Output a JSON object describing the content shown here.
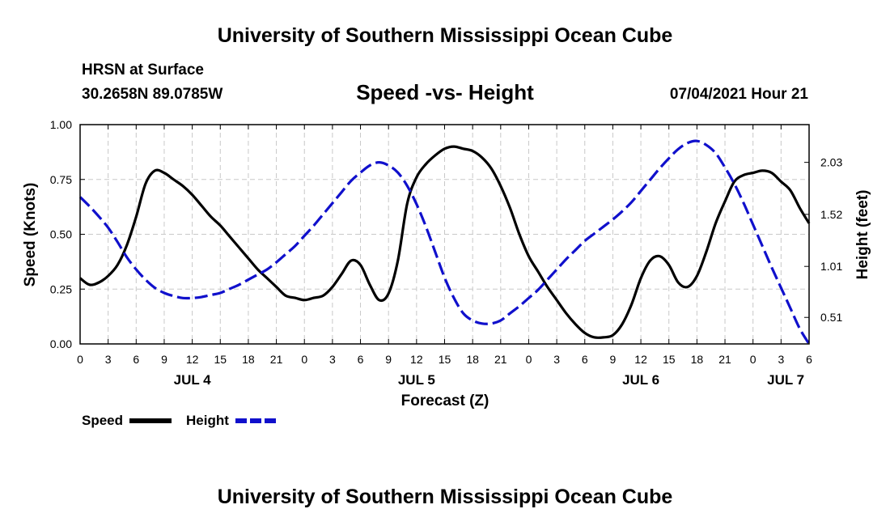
{
  "header": {
    "title": "University of Southern Mississippi Ocean Cube",
    "station": "HRSN at Surface",
    "coordinates": "30.2658N  89.0785W",
    "subtitle": "Speed -vs- Height",
    "datetime": "07/04/2021 Hour 21"
  },
  "footer": {
    "title": "University of Southern Mississippi Ocean Cube"
  },
  "chart_data": {
    "type": "line",
    "xlabel": "Forecast (Z)",
    "ylabel_left": "Speed (Knots)",
    "ylabel_right": "Height (feet)",
    "x_unit": "forecast hours from JUL 4 00Z",
    "xlim": [
      0,
      78
    ],
    "ylim_left": [
      0,
      1
    ],
    "ylim_right": [
      0.25,
      2.4
    ],
    "grid": true,
    "x_ticks": [
      0,
      3,
      6,
      9,
      12,
      15,
      18,
      21,
      24,
      27,
      30,
      33,
      36,
      39,
      42,
      45,
      48,
      51,
      54,
      57,
      60,
      63,
      66,
      69,
      72,
      75,
      78
    ],
    "x_tick_labels": [
      "0",
      "3",
      "6",
      "9",
      "12",
      "15",
      "18",
      "21",
      "0",
      "3",
      "6",
      "9",
      "12",
      "15",
      "18",
      "21",
      "0",
      "3",
      "6",
      "9",
      "12",
      "15",
      "18",
      "21",
      "0",
      "3",
      "6"
    ],
    "date_labels": [
      {
        "x": 12,
        "label": "JUL 4"
      },
      {
        "x": 36,
        "label": "JUL 5"
      },
      {
        "x": 60,
        "label": "JUL 6"
      },
      {
        "x": 75.5,
        "label": "JUL 7"
      }
    ],
    "y_left_ticks": [
      0,
      0.25,
      0.5,
      0.75,
      1.0
    ],
    "y_left_tick_labels": [
      "0.00",
      "0.25",
      "0.50",
      "0.75",
      "1.00"
    ],
    "y_right_ticks": [
      0.51,
      1.01,
      1.52,
      2.03
    ],
    "y_right_tick_labels": [
      "0.51",
      "1.01",
      "1.52",
      "2.03"
    ],
    "legend": {
      "placement": "bottom-left",
      "items": [
        {
          "label": "Speed",
          "color": "#000000",
          "style": "solid"
        },
        {
          "label": "Height",
          "color": "#1010cc",
          "style": "dashed"
        }
      ]
    },
    "series": [
      {
        "name": "Speed",
        "axis": "left",
        "color": "#000000",
        "style": "solid",
        "x": [
          0,
          1,
          2,
          3,
          4,
          5,
          6,
          7,
          8,
          9,
          10,
          11,
          12,
          13,
          14,
          15,
          16,
          17,
          18,
          19,
          20,
          21,
          22,
          23,
          24,
          25,
          26,
          27,
          28,
          29,
          30,
          31,
          32,
          33,
          34,
          35,
          36,
          37,
          38,
          39,
          40,
          41,
          42,
          43,
          44,
          45,
          46,
          47,
          48,
          49,
          50,
          51,
          52,
          53,
          54,
          55,
          56,
          57,
          58,
          59,
          60,
          61,
          62,
          63,
          64,
          65,
          66,
          67,
          68,
          69,
          70,
          71,
          72,
          73,
          74,
          75,
          76,
          77,
          78
        ],
        "values": [
          0.3,
          0.27,
          0.28,
          0.31,
          0.36,
          0.45,
          0.58,
          0.73,
          0.79,
          0.78,
          0.75,
          0.72,
          0.68,
          0.63,
          0.58,
          0.54,
          0.49,
          0.44,
          0.39,
          0.34,
          0.3,
          0.26,
          0.22,
          0.21,
          0.2,
          0.21,
          0.22,
          0.26,
          0.32,
          0.38,
          0.36,
          0.27,
          0.2,
          0.23,
          0.38,
          0.64,
          0.76,
          0.82,
          0.86,
          0.89,
          0.9,
          0.89,
          0.88,
          0.85,
          0.8,
          0.72,
          0.62,
          0.5,
          0.4,
          0.33,
          0.26,
          0.2,
          0.14,
          0.09,
          0.05,
          0.03,
          0.03,
          0.04,
          0.09,
          0.18,
          0.3,
          0.38,
          0.4,
          0.36,
          0.28,
          0.26,
          0.31,
          0.42,
          0.55,
          0.65,
          0.74,
          0.77,
          0.78,
          0.79,
          0.78,
          0.74,
          0.7,
          0.62,
          0.55
        ]
      },
      {
        "name": "Height",
        "axis": "right",
        "color": "#1010cc",
        "style": "dashed",
        "x": [
          0,
          1,
          2,
          3,
          4,
          5,
          6,
          7,
          8,
          9,
          10,
          11,
          12,
          13,
          14,
          15,
          16,
          17,
          18,
          19,
          20,
          21,
          22,
          23,
          24,
          25,
          26,
          27,
          28,
          29,
          30,
          31,
          32,
          33,
          34,
          35,
          36,
          37,
          38,
          39,
          40,
          41,
          42,
          43,
          44,
          45,
          46,
          47,
          48,
          49,
          50,
          51,
          52,
          53,
          54,
          55,
          56,
          57,
          58,
          59,
          60,
          61,
          62,
          63,
          64,
          65,
          66,
          67,
          68,
          69,
          70,
          71,
          72,
          73,
          74,
          75,
          76,
          77,
          78
        ],
        "values": [
          1.69,
          1.6,
          1.5,
          1.39,
          1.25,
          1.1,
          0.98,
          0.88,
          0.8,
          0.75,
          0.72,
          0.7,
          0.7,
          0.71,
          0.73,
          0.75,
          0.79,
          0.83,
          0.88,
          0.93,
          0.98,
          1.05,
          1.13,
          1.21,
          1.31,
          1.41,
          1.52,
          1.63,
          1.74,
          1.85,
          1.93,
          2.0,
          2.03,
          2.0,
          1.93,
          1.8,
          1.62,
          1.4,
          1.15,
          0.9,
          0.7,
          0.55,
          0.48,
          0.45,
          0.45,
          0.48,
          0.55,
          0.62,
          0.7,
          0.78,
          0.88,
          0.98,
          1.08,
          1.17,
          1.26,
          1.33,
          1.4,
          1.47,
          1.55,
          1.64,
          1.75,
          1.86,
          1.97,
          2.07,
          2.16,
          2.22,
          2.24,
          2.2,
          2.12,
          1.98,
          1.82,
          1.63,
          1.42,
          1.21,
          1.0,
          0.8,
          0.6,
          0.4,
          0.2
        ]
      }
    ]
  }
}
